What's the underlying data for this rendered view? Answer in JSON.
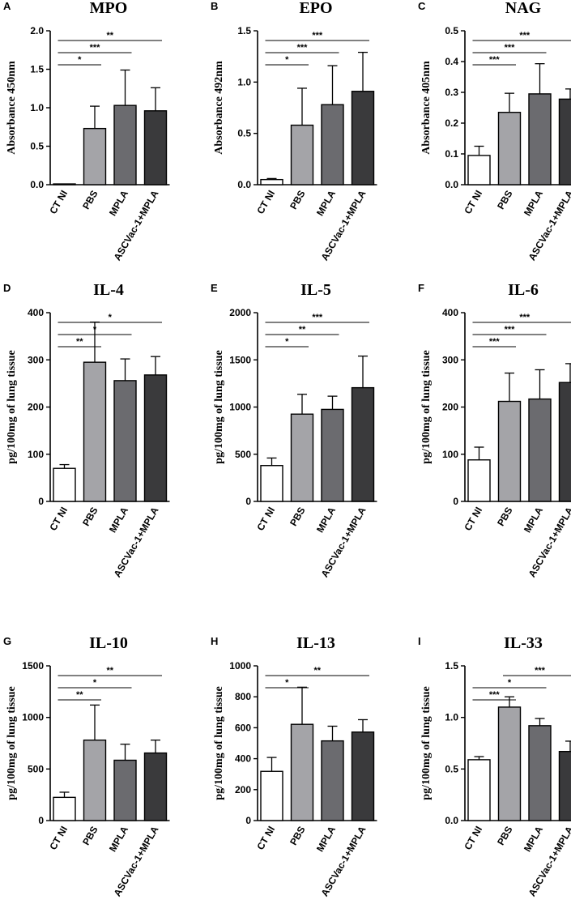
{
  "chart_data": [
    {
      "letter": "A",
      "type": "bar",
      "title": "MPO",
      "ylabel": "Absorbance 450nm",
      "categories": [
        "CT NI",
        "PBS",
        "MPLA",
        "ASCVac-1+MPLA"
      ],
      "values": [
        0.01,
        0.73,
        1.03,
        0.96
      ],
      "errors": [
        0.0,
        0.29,
        0.46,
        0.3
      ],
      "ylim": [
        0,
        2.0
      ],
      "yticks": [
        0,
        0.5,
        1.0,
        1.5,
        2.0
      ],
      "ytick_labels": [
        "0.0",
        "0.5",
        "1.0",
        "1.5",
        "2.0"
      ],
      "brackets": [
        {
          "to": 1,
          "label": "*"
        },
        {
          "to": 2,
          "label": "***"
        },
        {
          "to": 3,
          "label": "**"
        }
      ]
    },
    {
      "letter": "B",
      "type": "bar",
      "title": "EPO",
      "ylabel": "Absorbance 492nm",
      "categories": [
        "CT NI",
        "PBS",
        "MPLA",
        "ASCVac-1+MPLA"
      ],
      "values": [
        0.05,
        0.58,
        0.78,
        0.91
      ],
      "errors": [
        0.01,
        0.36,
        0.38,
        0.38
      ],
      "ylim": [
        0,
        1.5
      ],
      "yticks": [
        0,
        0.5,
        1.0,
        1.5
      ],
      "ytick_labels": [
        "0.0",
        "0.5",
        "1.0",
        "1.5"
      ],
      "brackets": [
        {
          "to": 1,
          "label": "*"
        },
        {
          "to": 2,
          "label": "***"
        },
        {
          "to": 3,
          "label": "***"
        }
      ]
    },
    {
      "letter": "C",
      "type": "bar",
      "title": "NAG",
      "ylabel": "Absorbance 405nm",
      "categories": [
        "CT NI",
        "PBS",
        "MPLA",
        "ASCVac-1+MPLA"
      ],
      "values": [
        0.095,
        0.235,
        0.295,
        0.278
      ],
      "errors": [
        0.03,
        0.062,
        0.098,
        0.033
      ],
      "ylim": [
        0,
        0.5
      ],
      "yticks": [
        0,
        0.1,
        0.2,
        0.3,
        0.4,
        0.5
      ],
      "ytick_labels": [
        "0.0",
        "0.1",
        "0.2",
        "0.3",
        "0.4",
        "0.5"
      ],
      "brackets": [
        {
          "to": 1,
          "label": "***"
        },
        {
          "to": 2,
          "label": "***"
        },
        {
          "to": 3,
          "label": "***"
        }
      ]
    },
    {
      "letter": "D",
      "type": "bar",
      "title": "IL-4",
      "ylabel": "pg/100mg of lung tissue",
      "categories": [
        "CT NI",
        "PBS",
        "MPLA",
        "ASCVac-1+MPLA"
      ],
      "values": [
        70,
        295,
        256,
        268
      ],
      "errors": [
        8,
        85,
        46,
        39
      ],
      "ylim": [
        0,
        400
      ],
      "yticks": [
        0,
        100,
        200,
        300,
        400
      ],
      "ytick_labels": [
        "0",
        "100",
        "200",
        "300",
        "400"
      ],
      "brackets": [
        {
          "to": 1,
          "label": "**"
        },
        {
          "to": 2,
          "label": "*"
        },
        {
          "to": 3,
          "label": "*"
        }
      ]
    },
    {
      "letter": "E",
      "type": "bar",
      "title": "IL-5",
      "ylabel": "pg/100mg of lung tissue",
      "categories": [
        "CT NI",
        "PBS",
        "MPLA",
        "ASCVac-1+MPLA"
      ],
      "values": [
        380,
        925,
        975,
        1205
      ],
      "errors": [
        80,
        210,
        140,
        335
      ],
      "ylim": [
        0,
        2000
      ],
      "yticks": [
        0,
        500,
        1000,
        1500,
        2000
      ],
      "ytick_labels": [
        "0",
        "500",
        "1000",
        "1500",
        "2000"
      ],
      "brackets": [
        {
          "to": 1,
          "label": "*"
        },
        {
          "to": 2,
          "label": "**"
        },
        {
          "to": 3,
          "label": "***"
        }
      ]
    },
    {
      "letter": "F",
      "type": "bar",
      "title": "IL-6",
      "ylabel": "pg/100mg of lung tissue",
      "categories": [
        "CT NI",
        "PBS",
        "MPLA",
        "ASCVac-1+MPLA"
      ],
      "values": [
        88,
        212,
        217,
        252
      ],
      "errors": [
        27,
        60,
        62,
        40
      ],
      "ylim": [
        0,
        400
      ],
      "yticks": [
        0,
        100,
        200,
        300,
        400
      ],
      "ytick_labels": [
        "0",
        "100",
        "200",
        "300",
        "400"
      ],
      "brackets": [
        {
          "to": 1,
          "label": "***"
        },
        {
          "to": 2,
          "label": "***"
        },
        {
          "to": 3,
          "label": "***"
        }
      ]
    },
    {
      "letter": "G",
      "type": "bar",
      "title": "IL-10",
      "ylabel": "pg/100mg of lung tissue",
      "categories": [
        "CT NI",
        "PBS",
        "MPLA",
        "ASCVac-1+MPLA"
      ],
      "values": [
        225,
        780,
        585,
        655
      ],
      "errors": [
        50,
        340,
        155,
        125
      ],
      "ylim": [
        0,
        1500
      ],
      "yticks": [
        0,
        500,
        1000,
        1500
      ],
      "ytick_labels": [
        "0",
        "500",
        "1000",
        "1500"
      ],
      "brackets": [
        {
          "to": 1,
          "label": "**"
        },
        {
          "to": 2,
          "label": "*"
        },
        {
          "to": 3,
          "label": "**"
        }
      ]
    },
    {
      "letter": "H",
      "type": "bar",
      "title": "IL-13",
      "ylabel": "pg/100mg of lung tissue",
      "categories": [
        "CT NI",
        "PBS",
        "MPLA",
        "ASCVac-1+MPLA"
      ],
      "values": [
        318,
        622,
        515,
        572
      ],
      "errors": [
        90,
        240,
        95,
        80
      ],
      "ylim": [
        0,
        1000
      ],
      "yticks": [
        0,
        200,
        400,
        600,
        800,
        1000
      ],
      "ytick_labels": [
        "0",
        "200",
        "400",
        "600",
        "800",
        "1000"
      ],
      "brackets": [
        {
          "to": 1,
          "label": "*"
        },
        {
          "to": 3,
          "label": "**"
        }
      ]
    },
    {
      "letter": "I",
      "type": "bar",
      "title": "IL-33",
      "ylabel": "pg/100mg of lung tissue",
      "categories": [
        "CT NI",
        "PBS",
        "MPLA",
        "ASCVac-1+MPLA"
      ],
      "values": [
        0.59,
        1.1,
        0.92,
        0.67
      ],
      "errors": [
        0.03,
        0.1,
        0.07,
        0.1
      ],
      "ylim": [
        0,
        1.5
      ],
      "yticks": [
        0,
        0.5,
        1.0,
        1.5
      ],
      "ytick_labels": [
        "0.0",
        "0.5",
        "1.0",
        "1.5"
      ],
      "brackets": [
        {
          "to": 1,
          "label": "***"
        },
        {
          "to": 2,
          "label": "*"
        },
        {
          "from": 1,
          "to": 3,
          "label": "***"
        }
      ]
    }
  ],
  "colors": {
    "bars": [
      "#ffffff",
      "#a4a4a8",
      "#6b6b6f",
      "#3a3a3c"
    ],
    "stroke": "#000000"
  }
}
